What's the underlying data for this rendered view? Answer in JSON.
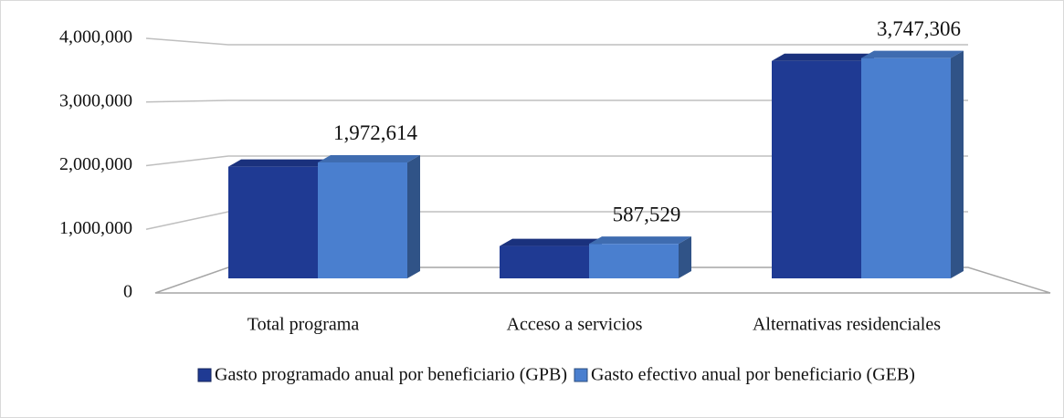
{
  "chart_data": {
    "type": "bar",
    "categories": [
      "Total programa",
      "Acceso a servicios",
      "Alternativas residenciales"
    ],
    "series": [
      {
        "name": "Gasto programado anual por beneficiario (GPB)",
        "color": "#1f3a93",
        "values": [
          1900000,
          550000,
          3700000
        ]
      },
      {
        "name": "Gasto efectivo anual por beneficiario (GEB)",
        "color": "#4a7fcf",
        "values": [
          1972614,
          587529,
          3747306
        ],
        "value_labels": [
          "1,972,614",
          "587,529",
          "3,747,306"
        ]
      }
    ],
    "ylim": [
      0,
      4000000
    ],
    "yticks": [
      0,
      {
        "value": 1000000,
        "label": "1,000,000"
      },
      {
        "value": 2000000,
        "label": "2,000,000"
      },
      {
        "value": 3000000,
        "label": "3,000,000"
      },
      {
        "value": 4000000,
        "label": "4,000,000"
      }
    ],
    "grid": true,
    "legend": "bottom"
  }
}
